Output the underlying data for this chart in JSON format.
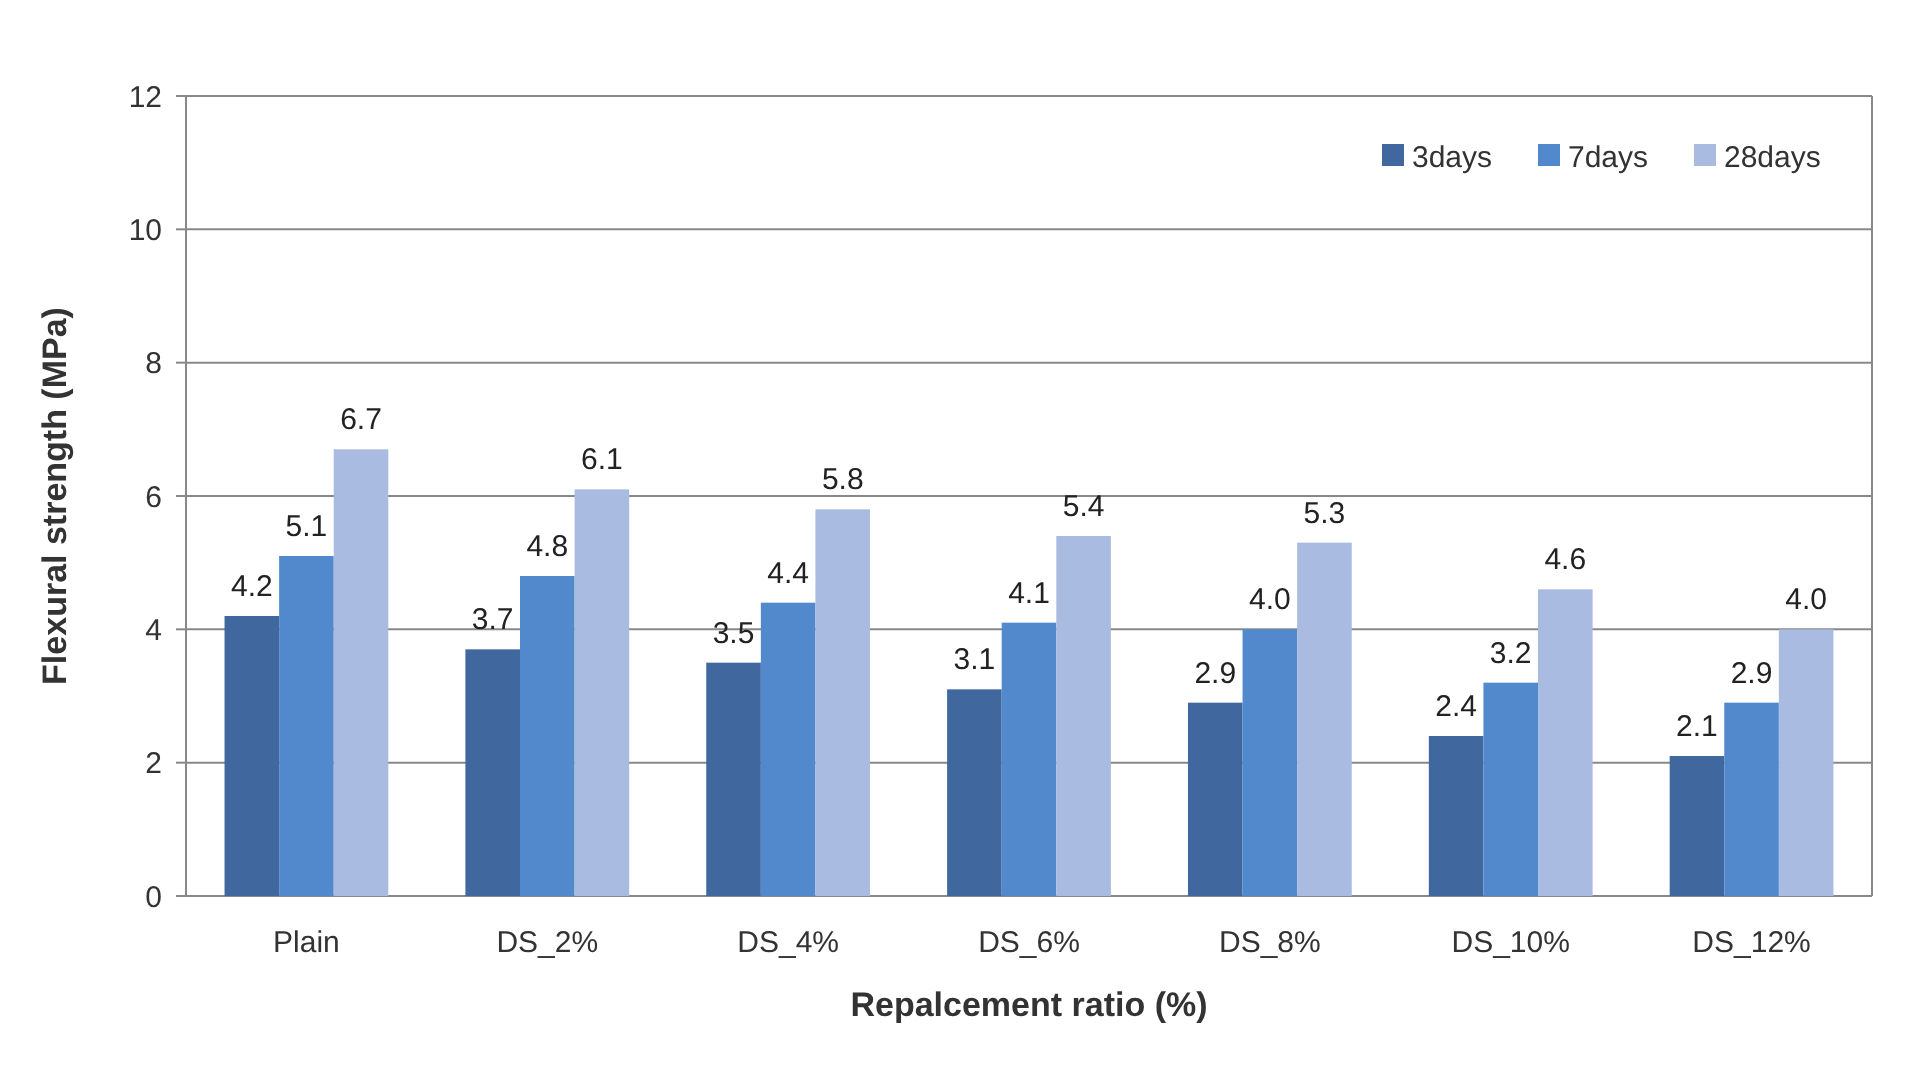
{
  "chart_data": {
    "type": "bar",
    "xlabel": "Repalcement ratio (%)",
    "ylabel": "Flexural strength (MPa)",
    "categories": [
      "Plain",
      "DS_2%",
      "DS_4%",
      "DS_6%",
      "DS_8%",
      "DS_10%",
      "DS_12%"
    ],
    "series": [
      {
        "name": "3days",
        "color": "#41679f",
        "values": [
          4.2,
          3.7,
          3.5,
          3.1,
          2.9,
          2.4,
          2.1
        ],
        "value_labels": [
          "4.2",
          "3.7",
          "3.5",
          "3.1",
          "2.9",
          "2.4",
          "2.1"
        ]
      },
      {
        "name": "7days",
        "color": "#5289cc",
        "values": [
          5.1,
          4.8,
          4.4,
          4.1,
          4.0,
          3.2,
          2.9
        ],
        "value_labels": [
          "5.1",
          "4.8",
          "4.4",
          "4.1",
          "4.0",
          "3.2",
          "2.9"
        ]
      },
      {
        "name": "28days",
        "color": "#a9bbe0",
        "values": [
          6.7,
          6.1,
          5.8,
          5.4,
          5.3,
          4.6,
          4.0
        ],
        "value_labels": [
          "6.7",
          "6.1",
          "5.8",
          "5.4",
          "5.3",
          "4.6",
          "4.0"
        ]
      }
    ],
    "ylim": [
      0,
      12
    ],
    "yticks": [
      0,
      2,
      4,
      6,
      8,
      10,
      12
    ],
    "grid": "y",
    "legend": "top right"
  }
}
